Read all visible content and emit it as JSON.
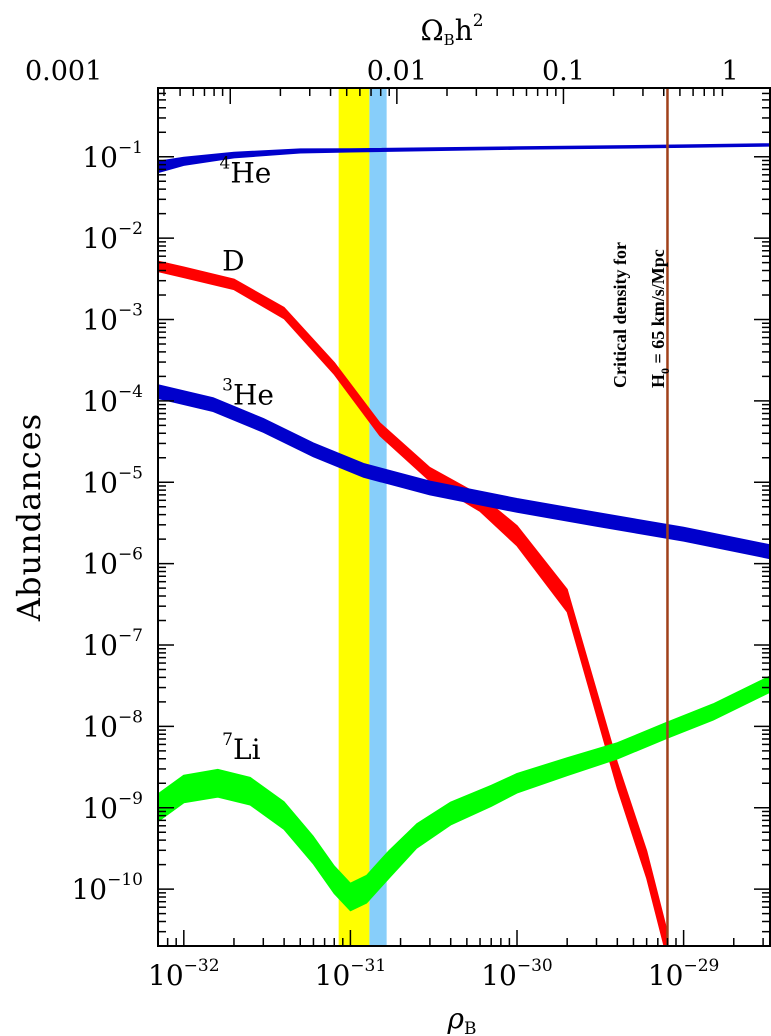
{
  "chart_data": {
    "type": "line",
    "xlabel": "ρ",
    "xlabel_sub": "B",
    "ylabel": "Abundances",
    "top_axis_label": "Ω",
    "top_axis_label_sub": "B",
    "top_axis_label_tail": "h",
    "top_axis_label_sup": "2",
    "x_scale": "log",
    "y_scale": "log",
    "xlim": [
      7e-33,
      3.3e-29
    ],
    "ylim": [
      2e-11,
      0.7
    ],
    "x_ticks": [
      {
        "base": "10",
        "exp": "−32",
        "value": 1e-32
      },
      {
        "base": "10",
        "exp": "−31",
        "value": 1e-31
      },
      {
        "base": "10",
        "exp": "−30",
        "value": 1e-30
      },
      {
        "base": "10",
        "exp": "−29",
        "value": 1e-29
      }
    ],
    "top_ticks": [
      {
        "label": "0.001",
        "value": 1.9e-33
      },
      {
        "label": "0.01",
        "value": 1.9e-31
      },
      {
        "label": "0.1",
        "value": 1.9e-30
      },
      {
        "label": "1",
        "value": 1.9e-29
      }
    ],
    "y_ticks": [
      {
        "base": "10",
        "exp": "−1",
        "value": 0.1
      },
      {
        "base": "10",
        "exp": "−2",
        "value": 0.01
      },
      {
        "base": "10",
        "exp": "−3",
        "value": 0.001
      },
      {
        "base": "10",
        "exp": "−4",
        "value": 0.0001
      },
      {
        "base": "10",
        "exp": "−5",
        "value": 1e-05
      },
      {
        "base": "10",
        "exp": "−6",
        "value": 1e-06
      },
      {
        "base": "10",
        "exp": "−7",
        "value": 1e-07
      },
      {
        "base": "10",
        "exp": "−8",
        "value": 1e-08
      },
      {
        "base": "10",
        "exp": "−9",
        "value": 1e-09
      },
      {
        "base": "10",
        "exp": "−10",
        "value": 1e-10
      }
    ],
    "bands": [
      {
        "x_from": 8.5e-32,
        "x_to": 1.3e-31,
        "color": "#ffff00"
      },
      {
        "x_from": 1.3e-31,
        "x_to": 1.65e-31,
        "color": "#87cefa"
      }
    ],
    "critical_line": {
      "x": 8e-30,
      "color": "#a0401a"
    },
    "critical_label_line1": "Critical density for",
    "critical_label_line2_a": "H",
    "critical_label_line2_sub": "0",
    "critical_label_line2_b": " = 65  km/s/Mpc",
    "series": [
      {
        "name": "He",
        "sup": "4",
        "color": "#0000cc",
        "x": [
          7e-33,
          1e-32,
          2e-32,
          5e-32,
          1e-31,
          1e-30,
          1e-29,
          3.3e-29
        ],
        "y": [
          0.075,
          0.088,
          0.105,
          0.118,
          0.12,
          0.128,
          0.135,
          0.14
        ],
        "width_dex": [
          0.14,
          0.1,
          0.07,
          0.05,
          0.04,
          0.03,
          0.03,
          0.03
        ],
        "label_x": 1.35e-32,
        "label_y": 0.048
      },
      {
        "name": "D",
        "color": "#ff0000",
        "x": [
          7e-33,
          1e-32,
          2e-32,
          4e-32,
          8e-32,
          1.5e-31,
          3e-31,
          6e-31,
          1e-30,
          2e-30,
          4e-30,
          6e-30,
          8e-30
        ],
        "y": [
          0.0045,
          0.0038,
          0.0027,
          0.0012,
          0.00025,
          4.5e-05,
          1.25e-05,
          5.5e-06,
          2.2e-06,
          3.5e-07,
          2.5e-09,
          2e-10,
          2e-11
        ],
        "width_dex": [
          0.13,
          0.13,
          0.13,
          0.14,
          0.15,
          0.16,
          0.17,
          0.2,
          0.25,
          0.28,
          0.32,
          0.34,
          0.34
        ],
        "label_x": 1.4e-32,
        "label_y": 0.004
      },
      {
        "name": "He",
        "sup": "3",
        "color": "#0000cc",
        "x": [
          7e-33,
          1.5e-32,
          3e-32,
          6e-32,
          1.2e-31,
          3e-31,
          1e-30,
          3e-30,
          1e-29,
          3.3e-29
        ],
        "y": [
          0.00013,
          9e-05,
          5e-05,
          2.5e-05,
          1.4e-05,
          8.5e-06,
          5.2e-06,
          3.5e-06,
          2.3e-06,
          1.4e-06
        ],
        "width_dex": [
          0.17,
          0.17,
          0.17,
          0.17,
          0.17,
          0.17,
          0.17,
          0.17,
          0.17,
          0.17
        ],
        "label_x": 1.4e-32,
        "label_y": 9e-05
      },
      {
        "name": "Li",
        "sup": "7",
        "color": "#00ff00",
        "x": [
          7e-33,
          1e-32,
          1.6e-32,
          2.5e-32,
          4e-32,
          6e-32,
          8e-32,
          1e-31,
          1.25e-31,
          1.7e-31,
          2.5e-31,
          4e-31,
          7e-31,
          1e-30,
          2e-30,
          4e-30,
          8e-30,
          1.5e-29,
          3.3e-29
        ],
        "y": [
          1e-09,
          1.7e-09,
          2e-09,
          1.6e-09,
          8e-10,
          3e-10,
          1.3e-10,
          8e-11,
          1e-10,
          2e-10,
          4.5e-10,
          8.5e-10,
          1.4e-09,
          2e-09,
          3.2e-09,
          5e-09,
          9e-09,
          1.5e-08,
          3.3e-08
        ],
        "width_dex": [
          0.34,
          0.34,
          0.34,
          0.34,
          0.34,
          0.34,
          0.34,
          0.34,
          0.34,
          0.34,
          0.3,
          0.28,
          0.26,
          0.24,
          0.22,
          0.2,
          0.2,
          0.2,
          0.2
        ],
        "label_x": 1.4e-32,
        "label_y": 4e-09
      }
    ]
  }
}
